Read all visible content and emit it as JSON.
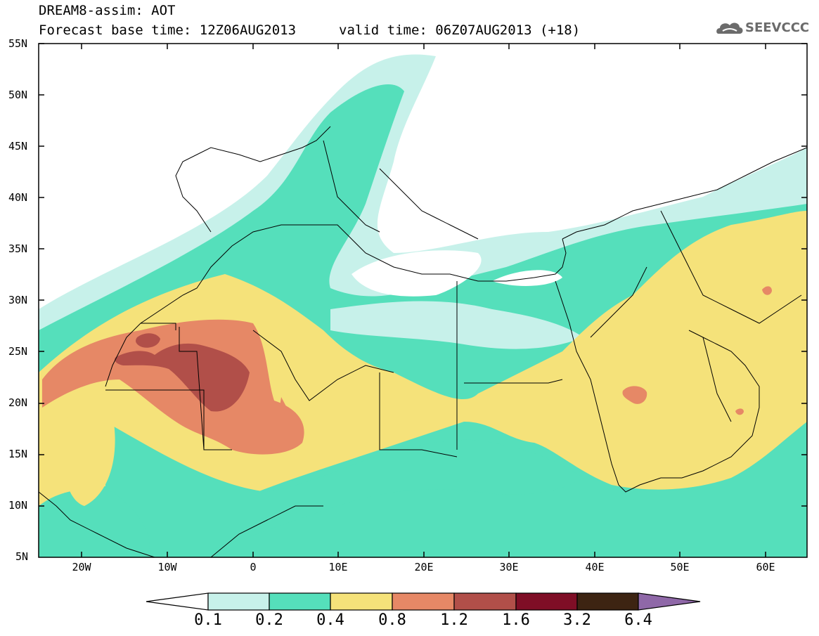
{
  "header": {
    "title_line1": "DREAM8-assim: AOT",
    "title_line2": "Forecast base time: 12Z06AUG2013",
    "valid_time": "valid time: 06Z07AUG2013 (+18)",
    "logo_text": "SEEVCCC"
  },
  "map": {
    "region": "North Africa / Mediterranean / Middle East",
    "lat_labels": [
      "55N",
      "50N",
      "45N",
      "40N",
      "35N",
      "30N",
      "25N",
      "20N",
      "15N",
      "10N",
      "5N"
    ],
    "lon_labels": [
      "20W",
      "10W",
      "0",
      "10E",
      "20E",
      "30E",
      "40E",
      "50E",
      "60E"
    ]
  },
  "colorbar": {
    "labels": [
      "0.1",
      "0.2",
      "0.4",
      "0.8",
      "1.2",
      "1.6",
      "3.2",
      "6.4"
    ],
    "colors": [
      "#c7f1ea",
      "#55dfbb",
      "#f5e27a",
      "#e68866",
      "#b14f49",
      "#7f0e26",
      "#3d2412",
      "#8f68a8"
    ]
  }
}
